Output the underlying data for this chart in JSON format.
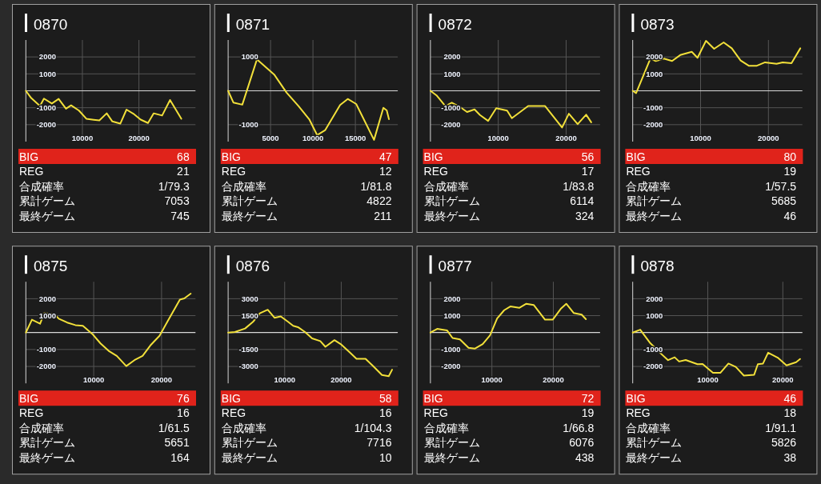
{
  "chart_data": [
    {
      "type": "line",
      "title": "0870",
      "color": "#f2e03a",
      "grid": true,
      "x": [
        0,
        950,
        2500,
        3200,
        4600,
        5800,
        7100,
        8000,
        9400,
        10700,
        12000,
        13000,
        14300,
        15300,
        16700,
        17800,
        19000,
        20300,
        21600,
        22600,
        24100,
        25500,
        27500
      ],
      "values": [
        0,
        -430,
        -900,
        -460,
        -750,
        -480,
        -1060,
        -860,
        -1170,
        -1650,
        -1710,
        -1750,
        -1330,
        -1810,
        -1940,
        -1110,
        -1350,
        -1700,
        -1900,
        -1330,
        -1460,
        -540,
        -1650
      ],
      "xlim": [
        0,
        30000
      ],
      "xticks": [
        10000,
        20000
      ],
      "ylim": [
        -3000,
        3000
      ],
      "yticks": [
        -2000,
        -1000,
        1000,
        2000
      ],
      "ref_lines": [
        {
          "axis": "y",
          "value": 0
        }
      ],
      "annotations": [
        "BIG",
        "68",
        "REG",
        "21",
        "合成確率",
        "1/79.3",
        "累計ゲーム",
        "7053",
        "最終ゲーム",
        "745"
      ]
    },
    {
      "type": "line",
      "title": "0871",
      "color": "#f2e03a",
      "grid": true,
      "x": [
        0,
        630,
        1670,
        3400,
        5460,
        6880,
        8300,
        9560,
        10500,
        11450,
        13200,
        14100,
        15100,
        17200,
        18300,
        18700,
        18960
      ],
      "values": [
        0,
        -350,
        -410,
        930,
        470,
        -50,
        -450,
        -840,
        -1310,
        -1160,
        -420,
        -240,
        -390,
        -1450,
        -500,
        -580,
        -840
      ],
      "xlim": [
        0,
        20000
      ],
      "xticks": [
        5000,
        10000,
        15000
      ],
      "ylim": [
        -1500,
        1500
      ],
      "yticks": [
        -1000,
        1000
      ],
      "ref_lines": [
        {
          "axis": "y",
          "value": 0
        }
      ],
      "annotations": [
        "BIG",
        "47",
        "REG",
        "12",
        "合成確率",
        "1/81.8",
        "累計ゲーム",
        "4822",
        "最終ゲーム",
        "211"
      ]
    },
    {
      "type": "line",
      "title": "0872",
      "color": "#f2e03a",
      "grid": true,
      "x": [
        0,
        900,
        2200,
        3150,
        4450,
        5400,
        6500,
        7300,
        8500,
        9700,
        11300,
        12000,
        14400,
        16900,
        19400,
        20400,
        21700,
        22950,
        23700
      ],
      "values": [
        0,
        -270,
        -900,
        -700,
        -980,
        -1250,
        -1100,
        -1430,
        -1780,
        -1030,
        -1170,
        -1620,
        -900,
        -900,
        -2170,
        -1350,
        -1970,
        -1410,
        -1860
      ],
      "xlim": [
        0,
        25000
      ],
      "xticks": [
        10000,
        20000
      ],
      "ylim": [
        -3000,
        3000
      ],
      "yticks": [
        -2000,
        -1000,
        1000,
        2000
      ],
      "ref_lines": [
        {
          "axis": "y",
          "value": 0
        }
      ],
      "annotations": [
        "BIG",
        "56",
        "REG",
        "17",
        "合成確率",
        "1/83.8",
        "累計ゲーム",
        "6114",
        "最終ゲーム",
        "324"
      ]
    },
    {
      "type": "line",
      "title": "0873",
      "color": "#f2e03a",
      "grid": true,
      "x": [
        0,
        500,
        2600,
        3400,
        4600,
        5800,
        7000,
        8700,
        9550,
        10800,
        12000,
        13400,
        14600,
        15900,
        17100,
        18300,
        19500,
        21200,
        22100,
        23400,
        24700
      ],
      "values": [
        0,
        -140,
        1900,
        1760,
        1900,
        1760,
        2110,
        2300,
        1950,
        2950,
        2480,
        2860,
        2510,
        1790,
        1480,
        1480,
        1680,
        1590,
        1680,
        1630,
        2510
      ],
      "xlim": [
        0,
        25000
      ],
      "xticks": [
        10000,
        20000
      ],
      "ylim": [
        -3000,
        3000
      ],
      "yticks": [
        -2000,
        -1000,
        1000,
        2000
      ],
      "ref_lines": [
        {
          "axis": "y",
          "value": 0
        }
      ],
      "annotations": [
        "BIG",
        "80",
        "REG",
        "19",
        "合成確率",
        "1/57.5",
        "累計ゲーム",
        "5685",
        "最終ゲーム",
        "46"
      ]
    },
    {
      "type": "line",
      "title": "0875",
      "color": "#f2e03a",
      "grid": true,
      "x": [
        0,
        900,
        2100,
        2700,
        4250,
        4850,
        6100,
        7300,
        8400,
        9800,
        11000,
        12200,
        13400,
        14800,
        16000,
        17200,
        18350,
        19700,
        20800,
        22700,
        23350,
        24300
      ],
      "values": [
        0,
        760,
        520,
        1140,
        1080,
        820,
        590,
        440,
        400,
        -80,
        -640,
        -1080,
        -1380,
        -1980,
        -1630,
        -1380,
        -760,
        -190,
        600,
        1950,
        2020,
        2300
      ],
      "xlim": [
        0,
        25000
      ],
      "xticks": [
        10000,
        20000
      ],
      "ylim": [
        -3000,
        3000
      ],
      "yticks": [
        -2000,
        -1000,
        1000,
        2000
      ],
      "ref_lines": [
        {
          "axis": "y",
          "value": 0
        }
      ],
      "annotations": [
        "BIG",
        "76",
        "REG",
        "16",
        "合成確率",
        "1/61.5",
        "累計ゲーム",
        "5651",
        "最終ゲーム",
        "164"
      ]
    },
    {
      "type": "line",
      "title": "0876",
      "color": "#f2e03a",
      "grid": true,
      "x": [
        0,
        1200,
        3000,
        4400,
        5600,
        7000,
        8200,
        9300,
        10600,
        11500,
        12350,
        13600,
        14850,
        16300,
        17200,
        18800,
        19900,
        21400,
        22700,
        24300,
        25800,
        27200,
        28400,
        29000
      ],
      "values": [
        0,
        50,
        360,
        950,
        1710,
        2020,
        1310,
        1430,
        950,
        600,
        480,
        50,
        -520,
        -760,
        -1260,
        -670,
        -1020,
        -1710,
        -2330,
        -2330,
        -3050,
        -3760,
        -3860,
        -3290
      ],
      "xlim": [
        0,
        30000
      ],
      "xticks": [
        10000,
        20000
      ],
      "ylim": [
        -4500,
        4500
      ],
      "yticks": [
        -3000,
        -1500,
        1500,
        3000
      ],
      "ref_lines": [
        {
          "axis": "y",
          "value": 0
        }
      ],
      "annotations": [
        "BIG",
        "58",
        "REG",
        "16",
        "合成確率",
        "1/104.3",
        "累計ゲーム",
        "7716",
        "最終ゲーム",
        "10"
      ]
    },
    {
      "type": "line",
      "title": "0877",
      "color": "#f2e03a",
      "grid": true,
      "x": [
        0,
        1100,
        2700,
        3600,
        4800,
        6200,
        7200,
        8500,
        9700,
        10850,
        12000,
        13000,
        14450,
        15600,
        16800,
        18650,
        19900,
        21200,
        22100,
        23300,
        24600,
        25300
      ],
      "values": [
        0,
        220,
        130,
        -320,
        -400,
        -900,
        -950,
        -680,
        -160,
        830,
        1320,
        1540,
        1460,
        1700,
        1630,
        760,
        760,
        1400,
        1700,
        1160,
        1060,
        790
      ],
      "xlim": [
        0,
        27600
      ],
      "xticks": [
        10000,
        20000
      ],
      "ylim": [
        -3000,
        3000
      ],
      "yticks": [
        -2000,
        -1000,
        1000,
        2000
      ],
      "ref_lines": [
        {
          "axis": "y",
          "value": 0
        }
      ],
      "annotations": [
        "BIG",
        "72",
        "REG",
        "19",
        "合成確率",
        "1/66.8",
        "累計ゲーム",
        "6076",
        "最終ゲーム",
        "438"
      ]
    },
    {
      "type": "line",
      "title": "0878",
      "color": "#f2e03a",
      "grid": true,
      "x": [
        0,
        1000,
        2350,
        3630,
        4710,
        5590,
        6180,
        7060,
        8630,
        9310,
        10690,
        11670,
        12750,
        13730,
        14810,
        16180,
        16670,
        17360,
        18040,
        19320,
        20490,
        21770,
        22300
      ],
      "values": [
        0,
        170,
        -630,
        -1190,
        -1630,
        -1460,
        -1710,
        -1620,
        -1870,
        -1860,
        -2380,
        -2380,
        -1830,
        -2030,
        -2540,
        -2490,
        -1870,
        -1830,
        -1190,
        -1480,
        -1940,
        -1750,
        -1560
      ],
      "xlim": [
        0,
        22600
      ],
      "xticks": [
        10000,
        20000
      ],
      "ylim": [
        -3000,
        3000
      ],
      "yticks": [
        -2000,
        -1000,
        1000,
        2000
      ],
      "ref_lines": [
        {
          "axis": "y",
          "value": 0
        }
      ],
      "annotations": [
        "BIG",
        "46",
        "REG",
        "18",
        "合成確率",
        "1/91.1",
        "累計ゲーム",
        "5826",
        "最終ゲーム",
        "38"
      ]
    }
  ]
}
